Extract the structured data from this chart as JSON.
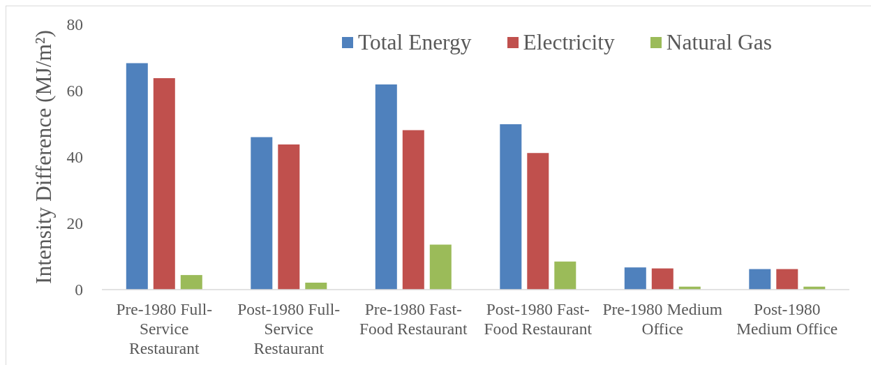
{
  "chart_data": {
    "type": "bar",
    "categories": [
      "Pre-1980 Full-Service Restaurant",
      "Post-1980 Full-Service Restaurant",
      "Pre-1980 Fast-Food Restaurant",
      "Post-1980 Fast-Food Restaurant",
      "Pre-1980 Medium Office",
      "Post-1980 Medium Office"
    ],
    "series": [
      {
        "name": "Total Energy",
        "color": "#4f81bd",
        "values": [
          68.3,
          46.0,
          61.9,
          49.9,
          6.7,
          6.2
        ]
      },
      {
        "name": "Electricity",
        "color": "#c0504d",
        "values": [
          63.8,
          43.8,
          48.1,
          41.2,
          6.4,
          6.2
        ]
      },
      {
        "name": "Natural Gas",
        "color": "#9bbb59",
        "values": [
          4.4,
          2.1,
          13.6,
          8.5,
          0.9,
          0.9
        ]
      }
    ],
    "ylabel": "Intensity Difference (MJ/m²)",
    "ylim": [
      0,
      80
    ],
    "yticks": [
      0,
      20,
      40,
      60,
      80
    ],
    "legend": "top"
  }
}
